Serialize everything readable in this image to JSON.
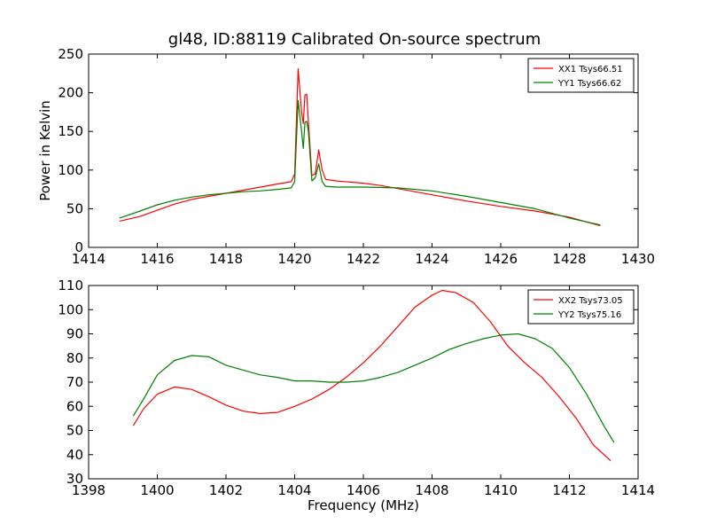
{
  "chart_data": [
    {
      "type": "line",
      "title": "gl48, ID:88119 Calibrated On-source spectrum",
      "xlabel": "",
      "ylabel": "Power in Kelvin",
      "xlim": [
        1414,
        1430
      ],
      "ylim": [
        0,
        250
      ],
      "xticks": [
        "1414",
        "1416",
        "1418",
        "1420",
        "1422",
        "1424",
        "1426",
        "1428",
        "1430"
      ],
      "yticks": [
        "0",
        "50",
        "100",
        "150",
        "200",
        "250"
      ],
      "legend_position": "top-right",
      "grid": false,
      "series": [
        {
          "name": "XX1 Tsys66.51",
          "color": "#ff0000",
          "points": [
            [
              1414.9,
              34
            ],
            [
              1415.5,
              40
            ],
            [
              1416,
              48
            ],
            [
              1416.5,
              56
            ],
            [
              1417,
              62
            ],
            [
              1417.5,
              66
            ],
            [
              1418,
              70
            ],
            [
              1418.5,
              74
            ],
            [
              1419,
              78
            ],
            [
              1419.5,
              82
            ],
            [
              1419.9,
              85
            ],
            [
              1420.0,
              95
            ],
            [
              1420.1,
              231
            ],
            [
              1420.2,
              175
            ],
            [
              1420.25,
              160
            ],
            [
              1420.3,
              197
            ],
            [
              1420.35,
              198
            ],
            [
              1420.4,
              162
            ],
            [
              1420.5,
              93
            ],
            [
              1420.6,
              95
            ],
            [
              1420.7,
              126
            ],
            [
              1420.8,
              100
            ],
            [
              1420.9,
              88
            ],
            [
              1421.2,
              86
            ],
            [
              1422,
              83
            ],
            [
              1422.5,
              80
            ],
            [
              1423,
              76
            ],
            [
              1423.5,
              72
            ],
            [
              1424,
              68
            ],
            [
              1425,
              60
            ],
            [
              1426,
              53
            ],
            [
              1427,
              47
            ],
            [
              1428,
              39
            ],
            [
              1428.9,
              28
            ]
          ]
        },
        {
          "name": "YY1 Tsys66.62",
          "color": "#008000",
          "points": [
            [
              1414.9,
              38
            ],
            [
              1415.5,
              47
            ],
            [
              1416,
              55
            ],
            [
              1416.5,
              61
            ],
            [
              1417,
              65
            ],
            [
              1417.5,
              68
            ],
            [
              1418,
              70
            ],
            [
              1418.5,
              72
            ],
            [
              1419,
              73
            ],
            [
              1419.5,
              75
            ],
            [
              1419.9,
              77
            ],
            [
              1420.0,
              85
            ],
            [
              1420.1,
              190
            ],
            [
              1420.2,
              150
            ],
            [
              1420.25,
              128
            ],
            [
              1420.3,
              162
            ],
            [
              1420.35,
              163
            ],
            [
              1420.4,
              150
            ],
            [
              1420.5,
              86
            ],
            [
              1420.6,
              90
            ],
            [
              1420.7,
              108
            ],
            [
              1420.8,
              85
            ],
            [
              1420.9,
              79
            ],
            [
              1421.2,
              78
            ],
            [
              1422,
              78
            ],
            [
              1423,
              77
            ],
            [
              1424,
              73
            ],
            [
              1425,
              66
            ],
            [
              1426,
              58
            ],
            [
              1427,
              50
            ],
            [
              1428,
              38
            ],
            [
              1428.9,
              29
            ]
          ]
        }
      ]
    },
    {
      "type": "line",
      "title": "",
      "xlabel": "Frequency (MHz)",
      "ylabel": "",
      "xlim": [
        1398,
        1414
      ],
      "ylim": [
        30,
        110
      ],
      "xticks": [
        "1398",
        "1400",
        "1402",
        "1404",
        "1406",
        "1408",
        "1410",
        "1412",
        "1414"
      ],
      "yticks": [
        "30",
        "40",
        "50",
        "60",
        "70",
        "80",
        "90",
        "100",
        "110"
      ],
      "legend_position": "top-right",
      "grid": false,
      "series": [
        {
          "name": "XX2 Tsys73.05",
          "color": "#ff0000",
          "points": [
            [
              1399.3,
              52
            ],
            [
              1399.6,
              59
            ],
            [
              1400,
              65
            ],
            [
              1400.5,
              68
            ],
            [
              1401,
              67
            ],
            [
              1401.5,
              64
            ],
            [
              1402,
              60.5
            ],
            [
              1402.5,
              58
            ],
            [
              1403,
              57
            ],
            [
              1403.5,
              57.5
            ],
            [
              1404,
              60
            ],
            [
              1404.5,
              63
            ],
            [
              1405,
              67
            ],
            [
              1405.5,
              72
            ],
            [
              1406,
              78
            ],
            [
              1406.5,
              85
            ],
            [
              1407,
              93
            ],
            [
              1407.5,
              101
            ],
            [
              1408,
              106
            ],
            [
              1408.3,
              108
            ],
            [
              1408.7,
              107
            ],
            [
              1409.2,
              103
            ],
            [
              1409.7,
              95
            ],
            [
              1410.2,
              85
            ],
            [
              1410.7,
              78
            ],
            [
              1411.2,
              72
            ],
            [
              1411.7,
              64
            ],
            [
              1412.2,
              55
            ],
            [
              1412.7,
              44
            ],
            [
              1413.2,
              37.5
            ]
          ]
        },
        {
          "name": "YY2 Tsys75.16",
          "color": "#008000",
          "points": [
            [
              1399.3,
              56
            ],
            [
              1399.6,
              63
            ],
            [
              1400,
              73
            ],
            [
              1400.5,
              79
            ],
            [
              1401,
              81
            ],
            [
              1401.5,
              80.5
            ],
            [
              1402,
              77
            ],
            [
              1402.5,
              75
            ],
            [
              1403,
              73
            ],
            [
              1403.5,
              72
            ],
            [
              1404,
              70.5
            ],
            [
              1404.5,
              70.5
            ],
            [
              1405,
              70
            ],
            [
              1405.5,
              70
            ],
            [
              1406,
              70.5
            ],
            [
              1406.5,
              72
            ],
            [
              1407,
              74
            ],
            [
              1407.5,
              77
            ],
            [
              1408,
              80
            ],
            [
              1408.5,
              83.5
            ],
            [
              1409,
              86
            ],
            [
              1409.5,
              88
            ],
            [
              1410,
              89.5
            ],
            [
              1410.5,
              90
            ],
            [
              1411,
              88
            ],
            [
              1411.5,
              84
            ],
            [
              1412,
              76
            ],
            [
              1412.5,
              65
            ],
            [
              1413,
              52
            ],
            [
              1413.3,
              45
            ]
          ]
        }
      ]
    }
  ]
}
